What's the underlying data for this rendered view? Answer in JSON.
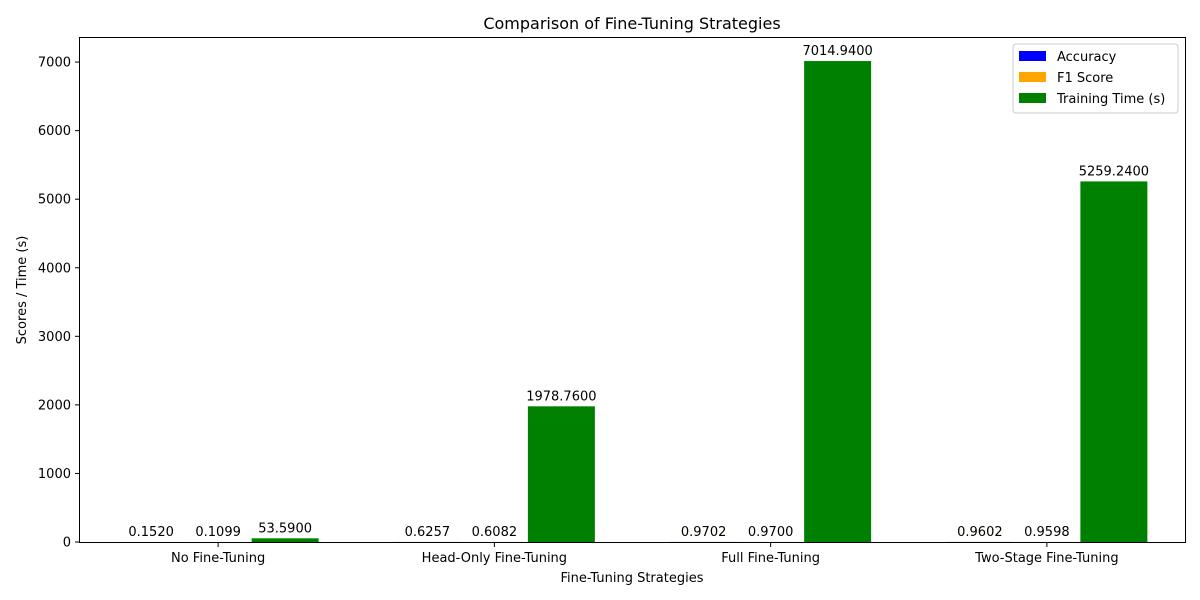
{
  "chart_data": {
    "type": "bar",
    "title": "Comparison of Fine-Tuning Strategies",
    "xlabel": "Fine-Tuning Strategies",
    "ylabel": "Scores / Time (s)",
    "categories": [
      "No Fine-Tuning",
      "Head-Only Fine-Tuning",
      "Full Fine-Tuning",
      "Two-Stage Fine-Tuning"
    ],
    "series": [
      {
        "name": "Accuracy",
        "color": "#0000ff",
        "values": [
          0.152,
          0.6257,
          0.9702,
          0.9602
        ],
        "labels": [
          "0.1520",
          "0.6257",
          "0.9702",
          "0.9602"
        ]
      },
      {
        "name": "F1 Score",
        "color": "#ffa500",
        "values": [
          0.1099,
          0.6082,
          0.97,
          0.9598
        ],
        "labels": [
          "0.1099",
          "0.6082",
          "0.9700",
          "0.9598"
        ]
      },
      {
        "name": "Training Time (s)",
        "color": "#008000",
        "values": [
          53.59,
          1978.76,
          7014.94,
          5259.24
        ],
        "labels": [
          "53.5900",
          "1978.7600",
          "7014.9400",
          "5259.2400"
        ]
      }
    ],
    "ylim": [
      0,
      7365.7
    ],
    "yticks": [
      0,
      1000,
      2000,
      3000,
      4000,
      5000,
      6000,
      7000
    ],
    "ytick_labels": [
      "0",
      "1000",
      "2000",
      "3000",
      "4000",
      "5000",
      "6000",
      "7000"
    ],
    "legend_position": "top-right",
    "grid": false
  }
}
